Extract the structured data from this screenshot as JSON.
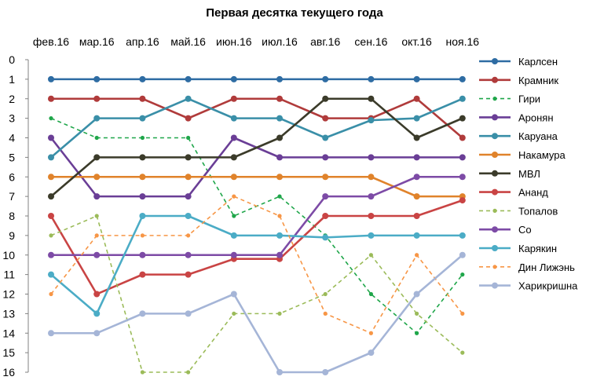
{
  "chart_data": {
    "type": "line",
    "title": "Первая десятка текущего года",
    "categories": [
      "фев.16",
      "мар.16",
      "апр.16",
      "май.16",
      "июн.16",
      "июл.16",
      "авг.16",
      "сен.16",
      "окт.16",
      "ноя.16"
    ],
    "ylim": [
      0,
      16
    ],
    "y_reversed": true,
    "y_ticks": [
      "0",
      "1",
      "2",
      "3",
      "4",
      "5",
      "6",
      "7",
      "8",
      "9",
      "10",
      "11",
      "12",
      "13",
      "14",
      "15",
      "16"
    ],
    "x_axis_position": "top",
    "grid": false,
    "legend_position": "right",
    "series": [
      {
        "name": "Карлсен",
        "color": "#2E6CA3",
        "dashed": false,
        "values": [
          1,
          1,
          1,
          1,
          1,
          1,
          1,
          1,
          1,
          1
        ]
      },
      {
        "name": "Крамник",
        "color": "#B03B3B",
        "dashed": false,
        "values": [
          2,
          2,
          2,
          3,
          2,
          2,
          3,
          3,
          2,
          4
        ]
      },
      {
        "name": "Гири",
        "color": "#1FA64A",
        "dashed": true,
        "values": [
          3,
          4,
          4,
          4,
          8,
          7,
          9,
          12,
          14,
          11
        ]
      },
      {
        "name": "Аронян",
        "color": "#6A3E96",
        "dashed": false,
        "values": [
          4,
          7,
          7,
          7,
          4,
          5,
          5,
          5,
          5,
          5
        ]
      },
      {
        "name": "Каруана",
        "color": "#3A8FA8",
        "dashed": false,
        "values": [
          5,
          3,
          3,
          2,
          3,
          3,
          4,
          3.1,
          3,
          2
        ]
      },
      {
        "name": "Накамура",
        "color": "#E0832B",
        "dashed": false,
        "values": [
          6,
          6,
          6,
          6,
          6,
          6,
          6,
          6,
          7,
          7
        ]
      },
      {
        "name": "МВЛ",
        "color": "#3B3B2A",
        "dashed": false,
        "values": [
          7,
          5,
          5,
          5,
          5,
          4,
          2,
          2,
          4,
          3
        ]
      },
      {
        "name": "Ананд",
        "color": "#C94444",
        "dashed": false,
        "values": [
          8,
          12,
          11,
          11,
          10.2,
          10.2,
          8,
          8,
          8,
          7.2
        ]
      },
      {
        "name": "Топалов",
        "color": "#9BBB59",
        "dashed": true,
        "values": [
          9,
          8,
          16,
          16,
          13,
          13,
          12,
          10,
          13,
          15
        ]
      },
      {
        "name": "Со",
        "color": "#7D4BA6",
        "dashed": false,
        "values": [
          10,
          10,
          10,
          10,
          10,
          10,
          7,
          7,
          6,
          6
        ]
      },
      {
        "name": "Карякин",
        "color": "#4BACC6",
        "dashed": false,
        "values": [
          11,
          13,
          8,
          8,
          9,
          9,
          9.1,
          9,
          9,
          9
        ]
      },
      {
        "name": "Дин Лижэнь",
        "color": "#F79646",
        "dashed": true,
        "values": [
          12,
          9,
          9,
          9,
          7,
          8,
          13,
          14,
          10,
          13
        ]
      },
      {
        "name": "Харикришна",
        "color": "#A5B5D7",
        "dashed": false,
        "values": [
          14,
          14,
          13,
          13,
          12,
          16,
          16,
          15,
          12,
          10
        ]
      }
    ]
  }
}
